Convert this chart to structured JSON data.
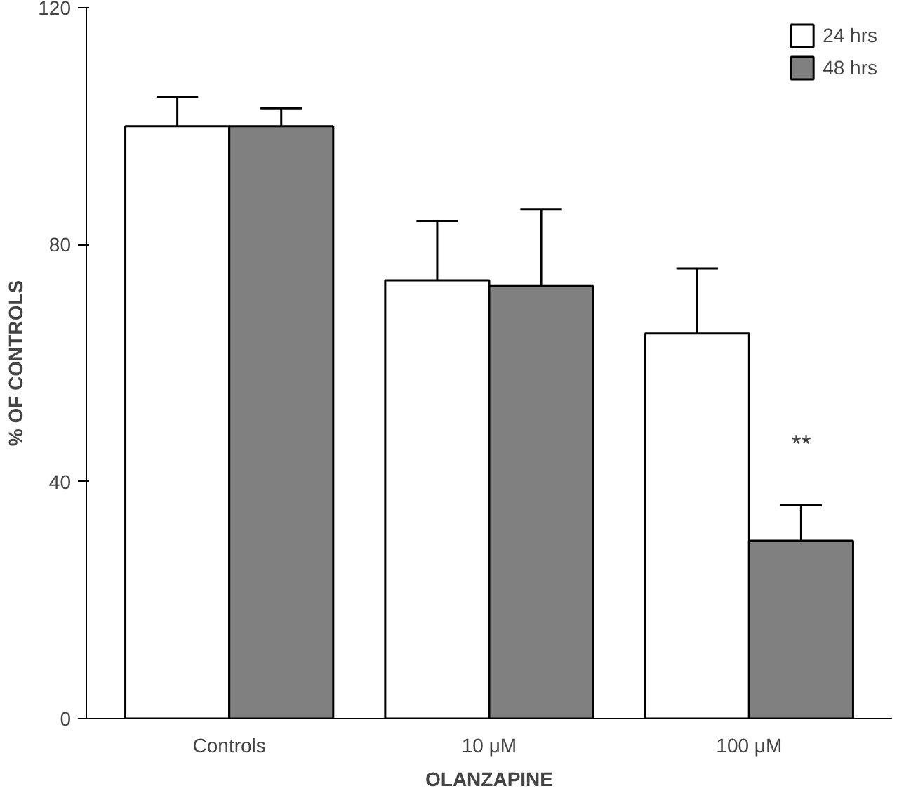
{
  "chart_data": {
    "type": "bar",
    "xlabel": "OLANZAPINE",
    "ylabel": "% OF CONTROLS",
    "categories": [
      "Controls",
      "10 μM",
      "100 μM"
    ],
    "series": [
      {
        "name": "24 hrs",
        "color": "#ffffff",
        "values": [
          100,
          74,
          65
        ],
        "errors": [
          [
            100,
            105
          ],
          [
            74,
            84
          ],
          [
            65,
            76
          ]
        ]
      },
      {
        "name": "48 hrs",
        "color": "#808080",
        "values": [
          100,
          73,
          30
        ],
        "errors": [
          [
            100,
            103
          ],
          [
            73,
            86
          ],
          [
            30,
            36
          ]
        ]
      }
    ],
    "ylim": [
      0,
      120
    ],
    "yticks": [
      0,
      40,
      80,
      120
    ],
    "grid": false,
    "legend": "top right",
    "annotations": [
      {
        "text": "**",
        "x": "100 μM",
        "y": 44
      }
    ]
  }
}
